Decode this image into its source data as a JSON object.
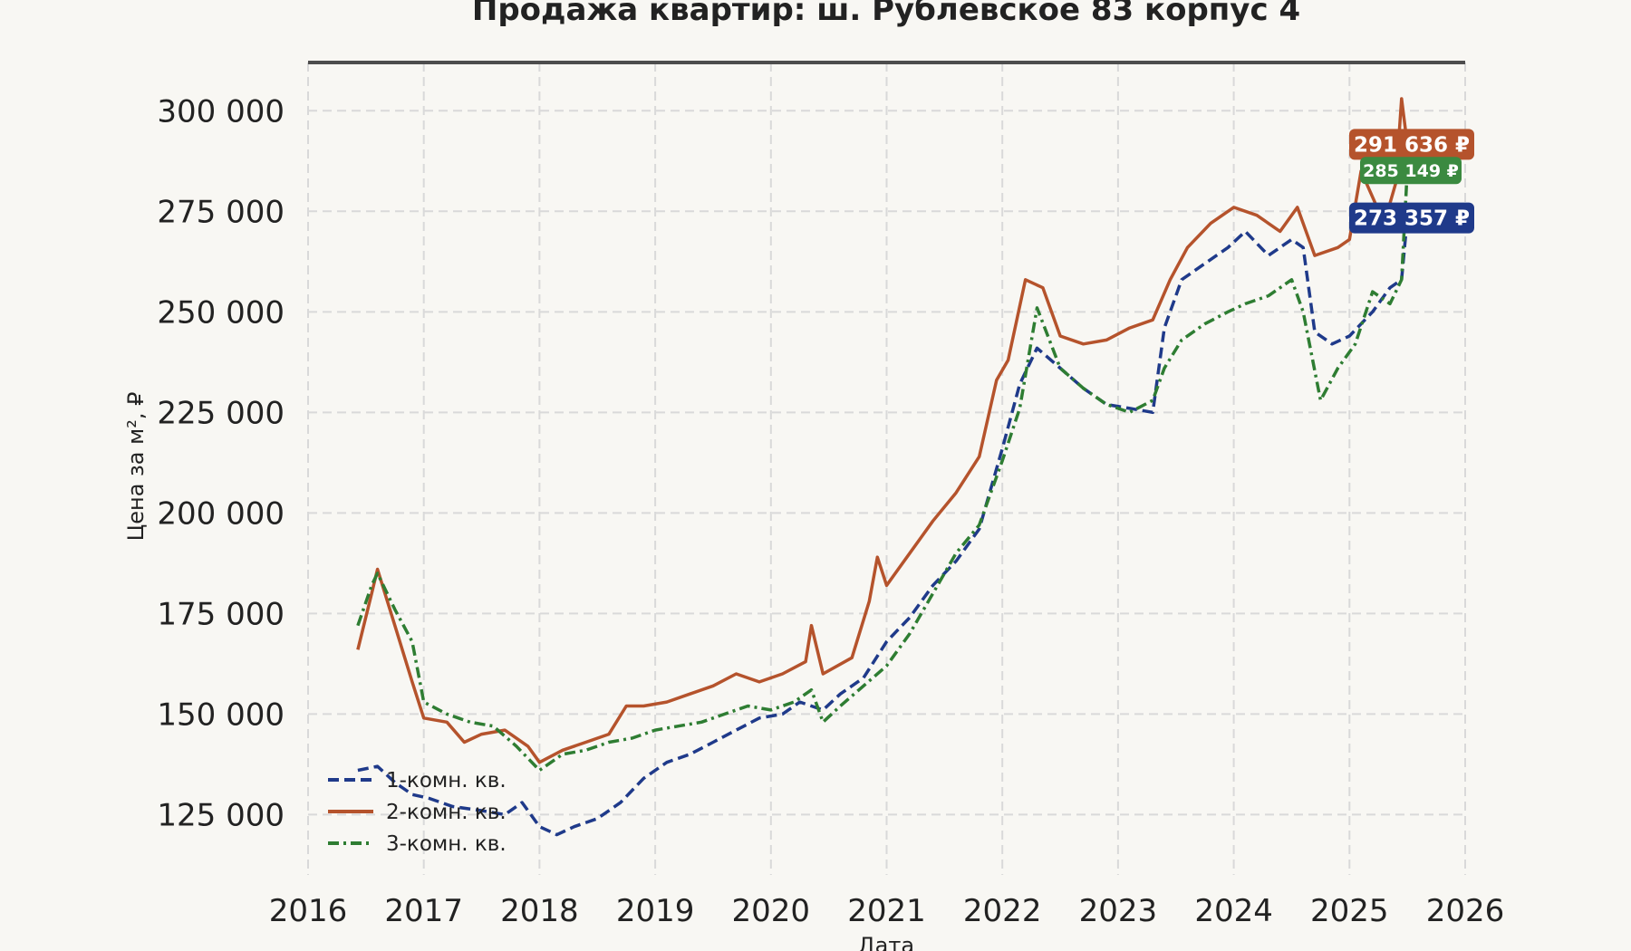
{
  "chart_data": {
    "type": "line",
    "title": "Продажа квартир: ш. Рублевское 83 корпус 4",
    "xlabel": "Дата",
    "ylabel": "Цена за м², ₽",
    "xlim": [
      2016.0,
      2026.0
    ],
    "ylim": [
      110000,
      312000
    ],
    "x_ticks": [
      2016,
      2017,
      2018,
      2019,
      2020,
      2021,
      2022,
      2023,
      2024,
      2025,
      2026
    ],
    "x_tick_labels": [
      "2016",
      "2017",
      "2018",
      "2019",
      "2020",
      "2021",
      "2022",
      "2023",
      "2024",
      "2025",
      "2026"
    ],
    "y_ticks": [
      125000,
      150000,
      175000,
      200000,
      225000,
      250000,
      275000,
      300000
    ],
    "y_tick_labels": [
      "125 000",
      "150 000",
      "175 000",
      "200 000",
      "225 000",
      "250 000",
      "275 000",
      "300 000"
    ],
    "grid": true,
    "legend_position": "bottom-left",
    "series": [
      {
        "name": "1-комн. кв.",
        "color": "#1f3a8a",
        "dash": "dashed",
        "x": [
          2016.43,
          2016.6,
          2016.75,
          2016.9,
          2017.05,
          2017.25,
          2017.5,
          2017.7,
          2017.85,
          2018.0,
          2018.15,
          2018.3,
          2018.5,
          2018.7,
          2018.9,
          2019.1,
          2019.3,
          2019.5,
          2019.7,
          2019.9,
          2020.1,
          2020.25,
          2020.45,
          2020.6,
          2020.8,
          2021.0,
          2021.2,
          2021.4,
          2021.6,
          2021.8,
          2022.0,
          2022.15,
          2022.3,
          2022.5,
          2022.7,
          2022.9,
          2023.1,
          2023.3,
          2023.4,
          2023.55,
          2023.75,
          2023.95,
          2024.1,
          2024.3,
          2024.5,
          2024.6,
          2024.7,
          2024.85,
          2025.0,
          2025.2,
          2025.35,
          2025.45,
          2025.5
        ],
        "y": [
          136000,
          137000,
          133000,
          130000,
          129000,
          127000,
          126000,
          125000,
          128000,
          122000,
          120000,
          122000,
          124000,
          128000,
          134000,
          138000,
          140000,
          143000,
          146000,
          149000,
          150000,
          153000,
          151000,
          155000,
          159000,
          168000,
          174000,
          182000,
          188000,
          196000,
          216000,
          232000,
          241000,
          236000,
          231000,
          227000,
          226000,
          225000,
          246000,
          258000,
          262000,
          266000,
          270000,
          264000,
          268000,
          266000,
          245000,
          242000,
          244000,
          250000,
          256000,
          258000,
          273357
        ]
      },
      {
        "name": "2-комн. кв.",
        "color": "#b5532c",
        "dash": "solid",
        "x": [
          2016.43,
          2016.55,
          2016.6,
          2016.75,
          2016.9,
          2017.0,
          2017.2,
          2017.35,
          2017.5,
          2017.7,
          2017.9,
          2018.0,
          2018.2,
          2018.4,
          2018.6,
          2018.75,
          2018.9,
          2019.1,
          2019.3,
          2019.5,
          2019.7,
          2019.9,
          2020.1,
          2020.3,
          2020.35,
          2020.45,
          2020.7,
          2020.85,
          2020.92,
          2021.0,
          2021.2,
          2021.4,
          2021.6,
          2021.8,
          2021.95,
          2022.05,
          2022.2,
          2022.35,
          2022.5,
          2022.7,
          2022.9,
          2023.1,
          2023.3,
          2023.45,
          2023.6,
          2023.8,
          2024.0,
          2024.2,
          2024.4,
          2024.55,
          2024.7,
          2024.9,
          2025.0,
          2025.1,
          2025.3,
          2025.4,
          2025.45,
          2025.5
        ],
        "y": [
          166000,
          180000,
          186000,
          172000,
          158000,
          149000,
          148000,
          143000,
          145000,
          146000,
          142000,
          138000,
          141000,
          143000,
          145000,
          152000,
          152000,
          153000,
          155000,
          157000,
          160000,
          158000,
          160000,
          163000,
          172000,
          160000,
          164000,
          178000,
          189000,
          182000,
          190000,
          198000,
          205000,
          214000,
          233000,
          238000,
          258000,
          256000,
          244000,
          242000,
          243000,
          246000,
          248000,
          258000,
          266000,
          272000,
          276000,
          274000,
          270000,
          276000,
          264000,
          266000,
          268000,
          285000,
          272000,
          282000,
          303000,
          291636
        ]
      },
      {
        "name": "3-комн. кв.",
        "color": "#2e7d32",
        "dash": "dashdot",
        "x": [
          2016.43,
          2016.55,
          2016.6,
          2016.75,
          2016.9,
          2017.0,
          2017.2,
          2017.4,
          2017.6,
          2017.8,
          2018.0,
          2018.2,
          2018.4,
          2018.6,
          2018.8,
          2019.0,
          2019.2,
          2019.4,
          2019.6,
          2019.8,
          2020.0,
          2020.2,
          2020.35,
          2020.45,
          2020.6,
          2020.8,
          2021.0,
          2021.2,
          2021.4,
          2021.6,
          2021.8,
          2022.0,
          2022.15,
          2022.3,
          2022.5,
          2022.7,
          2022.9,
          2023.1,
          2023.3,
          2023.4,
          2023.55,
          2023.75,
          2023.95,
          2024.1,
          2024.3,
          2024.5,
          2024.6,
          2024.75,
          2024.9,
          2025.05,
          2025.2,
          2025.35,
          2025.45,
          2025.5
        ],
        "y": [
          172000,
          182000,
          185000,
          176000,
          168000,
          153000,
          150000,
          148000,
          147000,
          142000,
          136000,
          140000,
          141000,
          143000,
          144000,
          146000,
          147000,
          148000,
          150000,
          152000,
          151000,
          153000,
          156000,
          148000,
          152000,
          157000,
          162000,
          170000,
          180000,
          190000,
          197000,
          213000,
          226000,
          251000,
          236000,
          231000,
          227000,
          225000,
          228000,
          236000,
          243000,
          247000,
          250000,
          252000,
          254000,
          258000,
          250000,
          228000,
          236000,
          242000,
          255000,
          252000,
          258000,
          285149
        ]
      }
    ],
    "end_labels": [
      {
        "series": "2-комн. кв.",
        "text": "291 636 ₽",
        "color": "#b5532c"
      },
      {
        "series": "3-комн. кв.",
        "text": "285 149 ₽",
        "color": "#3b8a40"
      },
      {
        "series": "1-комн. кв.",
        "text": "273 357 ₽",
        "color": "#1f3a8a"
      }
    ]
  }
}
